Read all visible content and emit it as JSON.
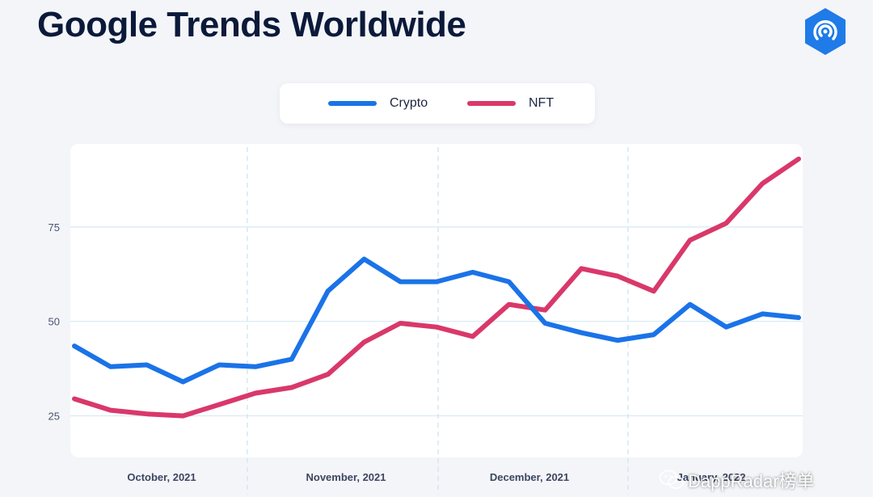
{
  "header": {
    "title": "Google Trends Worldwide"
  },
  "brand": {
    "logo_icon": "dappradar-logo-icon",
    "logo_color": "#1e7be8"
  },
  "watermark": {
    "text": "DappRadar榜单",
    "icon": "wechat-icon"
  },
  "colors": {
    "crypto": "#1a73e8",
    "nft": "#d9386a",
    "grid": "#d6e9f5"
  },
  "chart_data": {
    "type": "line",
    "title": "Google Trends Worldwide",
    "xlabel": "",
    "ylabel": "",
    "ylim": [
      14,
      97
    ],
    "yticks": [
      25,
      50,
      75
    ],
    "x_tick_labels": [
      "October, 2021",
      "November, 2021",
      "December, 2021",
      "January, 2022"
    ],
    "legend_position": "top-center",
    "grid": true,
    "series": [
      {
        "name": "Crypto",
        "values": [
          43.5,
          38,
          38.5,
          34,
          38.5,
          38,
          40,
          58,
          66.5,
          60.5,
          60.5,
          63,
          60.5,
          49.5,
          47,
          45,
          46.5,
          54.5,
          48.5,
          52,
          51
        ]
      },
      {
        "name": "NFT",
        "values": [
          29.5,
          26.5,
          25.5,
          25,
          28,
          31,
          32.5,
          36,
          44.5,
          49.5,
          48.5,
          46,
          54.5,
          53,
          64,
          62,
          58,
          71.5,
          76,
          86.5,
          93
        ]
      }
    ]
  }
}
